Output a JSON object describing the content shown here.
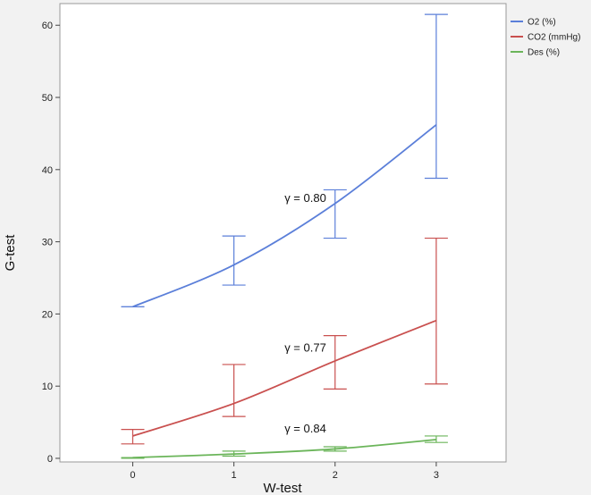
{
  "chart_data": {
    "type": "line",
    "xlabel": "W-test",
    "ylabel": "G-test",
    "x": [
      0,
      1,
      2,
      3
    ],
    "x_ticks": [
      "0",
      "1",
      "2",
      "3"
    ],
    "xlim": [
      -0.72,
      3.69
    ],
    "ylim": [
      -0.5,
      63
    ],
    "y_ticks": [
      0,
      10,
      20,
      30,
      40,
      50,
      60
    ],
    "grid": false,
    "legend_position": "top-right",
    "series": [
      {
        "name": "O2 (%)",
        "color": "#5b7fd9",
        "curve": [
          21.0,
          26.8,
          35.3,
          46.2
        ],
        "error_bars": [
          [
            21.0,
            21.0
          ],
          [
            24.0,
            30.8
          ],
          [
            30.5,
            37.2
          ],
          [
            38.8,
            61.5
          ]
        ]
      },
      {
        "name": "CO2 (mmHg)",
        "color": "#c9504f",
        "curve": [
          3.1,
          7.6,
          13.5,
          19.1
        ],
        "error_bars": [
          [
            2.0,
            4.0
          ],
          [
            5.8,
            13.0
          ],
          [
            9.6,
            17.0
          ],
          [
            10.3,
            30.5
          ]
        ]
      },
      {
        "name": "Des (%)",
        "color": "#6bb55a",
        "curve": [
          0.1,
          0.6,
          1.3,
          2.6
        ],
        "error_bars": [
          [
            0.0,
            0.1
          ],
          [
            0.3,
            1.0
          ],
          [
            1.0,
            1.6
          ],
          [
            2.2,
            3.1
          ]
        ]
      }
    ],
    "annotations": [
      {
        "text": "γ = 0.80",
        "x": 1.5,
        "y": 35.5
      },
      {
        "text": "γ = 0.77",
        "x": 1.5,
        "y": 14.8
      },
      {
        "text": "γ = 0.84",
        "x": 1.5,
        "y": 3.6
      }
    ]
  }
}
